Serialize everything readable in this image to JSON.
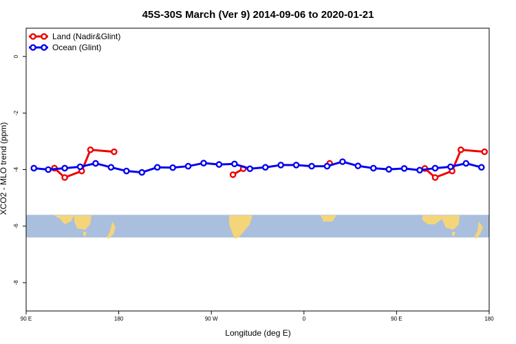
{
  "chart_data": {
    "type": "line",
    "title": "45S-30S March (Ver 9)   2014-09-06 to 2020-01-21",
    "xlabel": "Longitude (deg E)",
    "ylabel": "XCO2 - MLO trend (ppm)",
    "xlim": [
      90,
      540
    ],
    "ylim": [
      -9,
      1
    ],
    "x_ticks": [
      {
        "value": 90,
        "label": "90 E"
      },
      {
        "value": 180,
        "label": "180"
      },
      {
        "value": 270,
        "label": "90 W"
      },
      {
        "value": 360,
        "label": "0"
      },
      {
        "value": 450,
        "label": "90 E"
      },
      {
        "value": 540,
        "label": "180"
      }
    ],
    "y_ticks": [
      {
        "value": 0,
        "label": "0"
      },
      {
        "value": -2,
        "label": "-2"
      },
      {
        "value": -4,
        "label": "-4"
      },
      {
        "value": -6,
        "label": "-6"
      },
      {
        "value": -8,
        "label": "-8"
      }
    ],
    "legend_position": "top-left",
    "map_band": {
      "ocean_color": "#a9bfdd",
      "land_color": "#f5d57a",
      "y_range": [
        -6.4,
        -5.6
      ]
    },
    "series": [
      {
        "name": "Land (Nadir&Glint)",
        "color": "#ee0000",
        "segments": [
          [
            [
              117.5,
              -3.95
            ],
            [
              127.5,
              -4.28
            ],
            [
              144,
              -4.05
            ],
            [
              152.5,
              -3.3
            ],
            [
              175.5,
              -3.37
            ]
          ],
          [
            [
              291,
              -4.18
            ],
            [
              301,
              -3.97
            ]
          ],
          [
            [
              385,
              -3.78
            ]
          ],
          [
            [
              477.5,
              -3.96
            ],
            [
              487.5,
              -4.28
            ],
            [
              504,
              -4.05
            ],
            [
              512.5,
              -3.3
            ],
            [
              535.5,
              -3.37
            ]
          ]
        ]
      },
      {
        "name": "Ocean (Glint)",
        "color": "#0000ee",
        "segments": [
          [
            [
              97.5,
              -3.95
            ],
            [
              111.5,
              -4.0
            ],
            [
              127.5,
              -3.95
            ],
            [
              142.5,
              -3.9
            ],
            [
              157.5,
              -3.78
            ],
            [
              172.5,
              -3.92
            ],
            [
              187.5,
              -4.05
            ],
            [
              202.5,
              -4.1
            ],
            [
              217.5,
              -3.92
            ],
            [
              232.5,
              -3.93
            ],
            [
              247.5,
              -3.88
            ],
            [
              262.5,
              -3.77
            ],
            [
              277.5,
              -3.82
            ],
            [
              292.5,
              -3.8
            ],
            [
              307.5,
              -3.97
            ],
            [
              322.5,
              -3.92
            ],
            [
              337.5,
              -3.84
            ],
            [
              352.5,
              -3.84
            ],
            [
              367.5,
              -3.88
            ],
            [
              382.5,
              -3.88
            ],
            [
              397.5,
              -3.72
            ],
            [
              412.5,
              -3.87
            ],
            [
              427.5,
              -3.95
            ],
            [
              442.5,
              -3.99
            ],
            [
              457.5,
              -3.96
            ],
            [
              472.5,
              -4.02
            ],
            [
              487.5,
              -3.95
            ],
            [
              502.5,
              -3.9
            ],
            [
              517.5,
              -3.78
            ],
            [
              532.5,
              -3.92
            ]
          ]
        ]
      }
    ]
  }
}
